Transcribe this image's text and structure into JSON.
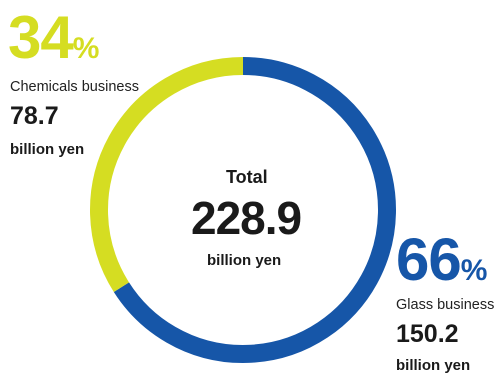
{
  "colors": {
    "glass": "#1656A8",
    "chemicals": "#D5DD22",
    "text": "#1a1a1a"
  },
  "chart_data": {
    "type": "pie",
    "variant": "donut",
    "start": "top",
    "direction": "clockwise",
    "slices": [
      {
        "name": "Glass business",
        "percent": 66,
        "value": 150.2,
        "unit": "billion yen",
        "color": "#1656A8"
      },
      {
        "name": "Chemicals business",
        "percent": 34,
        "value": 78.7,
        "unit": "billion yen",
        "color": "#D5DD22"
      }
    ],
    "center": {
      "title": "Total",
      "value": "228.9",
      "unit": "billion yen"
    }
  },
  "labels": {
    "chemicals": {
      "percent": "34",
      "percent_sign": "%",
      "name": "Chemicals business",
      "value": "78.7",
      "unit": "billion yen"
    },
    "glass": {
      "percent": "66",
      "percent_sign": "%",
      "name": "Glass business",
      "value": "150.2",
      "unit": "billion yen"
    }
  }
}
